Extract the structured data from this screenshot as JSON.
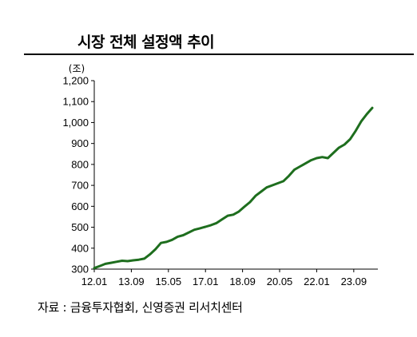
{
  "title": "시장 전체 설정액 추이",
  "source": "자료 : 금융투자협회, 신영증권 리서치센터",
  "chart_data": {
    "type": "line",
    "title": "시장 전체 설정액 추이",
    "ylabel": "(조)",
    "ylim": [
      300,
      1200
    ],
    "yticks": [
      "1,200",
      "1,100",
      "1,000",
      "900",
      "800",
      "700",
      "600",
      "500",
      "400",
      "300"
    ],
    "xticks": [
      "12.01",
      "13.09",
      "15.05",
      "17.01",
      "18.09",
      "20.05",
      "22.01",
      "23.09"
    ],
    "grid": false,
    "legend": "none",
    "line_color": "#1e6e1e",
    "series": [
      {
        "x": [
          "2012-01",
          "2012-04",
          "2012-07",
          "2012-10",
          "2013-01",
          "2013-04",
          "2013-07",
          "2013-10",
          "2014-01",
          "2014-04",
          "2014-07",
          "2014-10",
          "2015-01",
          "2015-04",
          "2015-07",
          "2015-10",
          "2016-01",
          "2016-04",
          "2016-07",
          "2016-10",
          "2017-01",
          "2017-04",
          "2017-07",
          "2017-10",
          "2018-01",
          "2018-04",
          "2018-07",
          "2018-10",
          "2019-01",
          "2019-04",
          "2019-07",
          "2019-10",
          "2020-01",
          "2020-04",
          "2020-07",
          "2020-10",
          "2021-01",
          "2021-04",
          "2021-07",
          "2021-10",
          "2022-01",
          "2022-04",
          "2022-07",
          "2022-10",
          "2023-01",
          "2023-04",
          "2023-07",
          "2023-10",
          "2024-01",
          "2024-04",
          "2024-07"
        ],
        "values": [
          305,
          315,
          325,
          330,
          335,
          340,
          338,
          342,
          345,
          350,
          370,
          395,
          425,
          430,
          440,
          455,
          462,
          475,
          488,
          495,
          502,
          510,
          520,
          538,
          555,
          560,
          575,
          598,
          620,
          650,
          670,
          690,
          700,
          710,
          720,
          745,
          775,
          790,
          805,
          820,
          830,
          835,
          830,
          855,
          880,
          895,
          920,
          960,
          1005,
          1040,
          1070
        ]
      }
    ]
  }
}
